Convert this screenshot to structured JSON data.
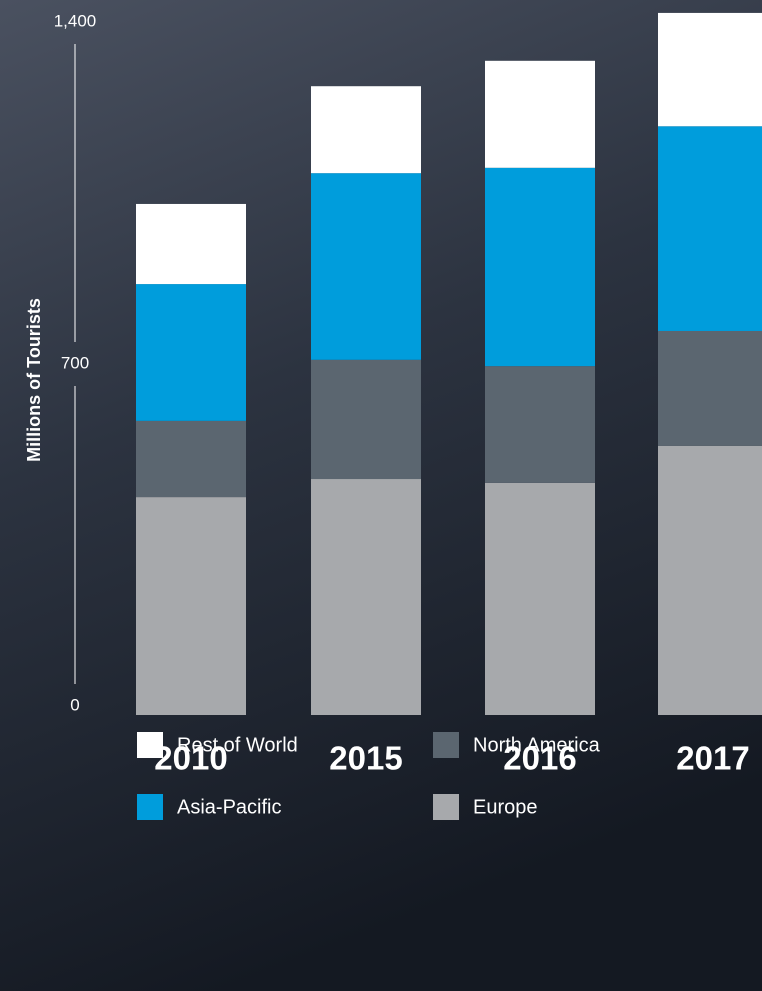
{
  "chart_data": {
    "type": "stacked_bar",
    "y_label": "Millions of Tourists",
    "categories": [
      "2010",
      "2015",
      "2016",
      "2017"
    ],
    "series": [
      {
        "name": "Europe",
        "color": "#a7a9ac",
        "values": [
          446,
          483,
          475,
          551
        ]
      },
      {
        "name": "North America",
        "color": "#5b6670",
        "values": [
          156,
          244,
          239,
          235
        ]
      },
      {
        "name": "Asia-Pacific",
        "color": "#009ddc",
        "values": [
          280,
          382,
          406,
          419
        ]
      },
      {
        "name": "Rest of World",
        "color": "#ffffff",
        "values": [
          164,
          178,
          219,
          232
        ]
      }
    ],
    "ylim": [
      0,
      1400
    ],
    "yticks": [
      0,
      700,
      {
        "value": 1400,
        "label": "1,400"
      }
    ]
  }
}
